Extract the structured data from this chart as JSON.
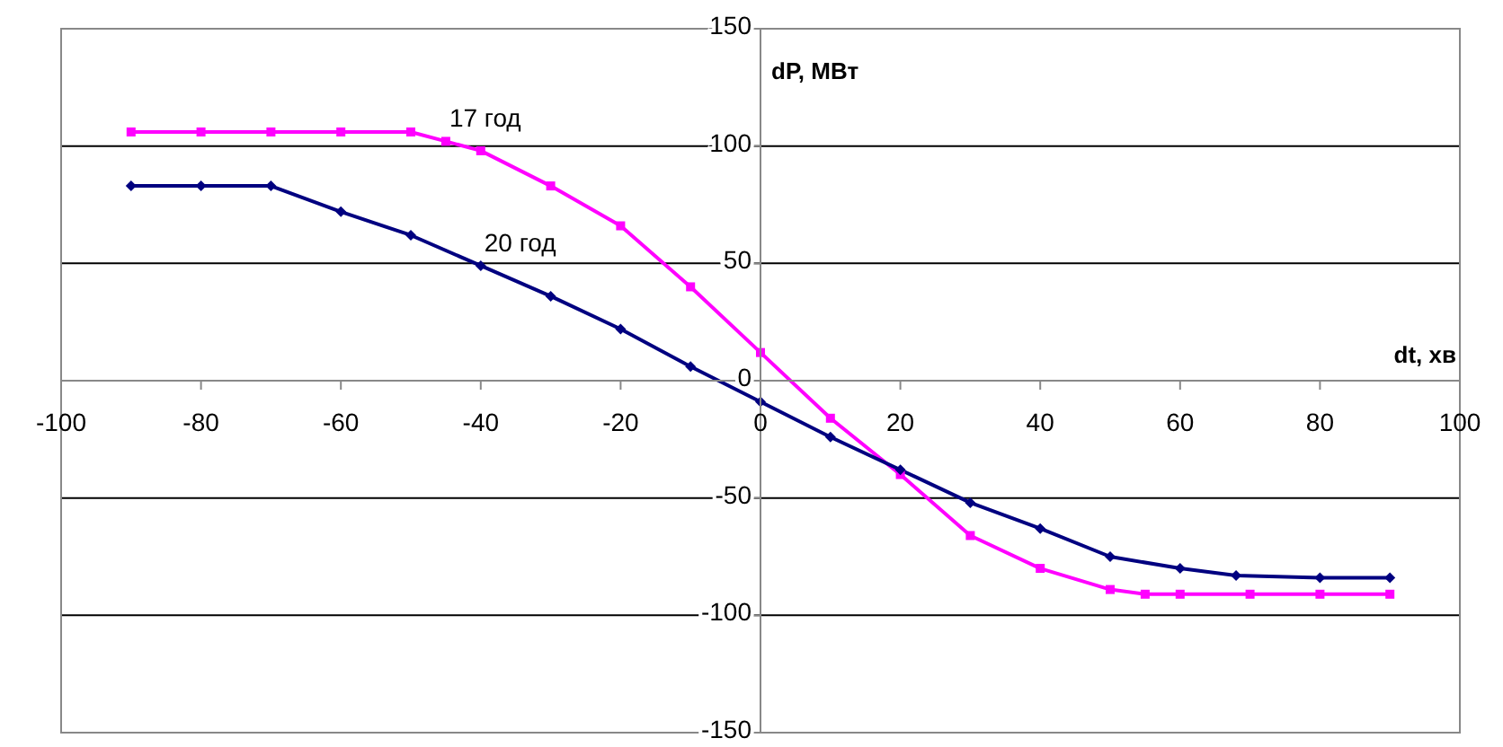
{
  "chart_data": {
    "type": "line",
    "xlabel": "dt, хв",
    "ylabel": "dP, МВт",
    "xlim": [
      -100,
      100
    ],
    "xticks": [
      -100,
      -80,
      -60,
      -40,
      -20,
      0,
      20,
      40,
      60,
      80,
      100
    ],
    "ylim": [
      -150,
      150
    ],
    "yticks": [
      -150,
      -100,
      -50,
      0,
      50,
      100,
      150
    ],
    "grid": "y",
    "line_style": "solid",
    "annotations": [
      {
        "text": "17 год",
        "x": -45,
        "y": 102
      },
      {
        "text": "20 год",
        "x": -40,
        "y": 49
      }
    ],
    "series": [
      {
        "color": "#ff00ff",
        "marker": "square",
        "x": [
          -90,
          -80,
          -70,
          -60,
          -50,
          -45,
          -40,
          -30,
          -20,
          -10,
          0,
          10,
          20,
          30,
          40,
          50,
          55,
          60,
          70,
          80,
          90
        ],
        "values": [
          106,
          106,
          106,
          106,
          106,
          102,
          98,
          83,
          66,
          40,
          12,
          -16,
          -40,
          -66,
          -80,
          -89,
          -91,
          -91,
          -91,
          -91,
          -91
        ]
      },
      {
        "color": "#000080",
        "marker": "diamond",
        "x": [
          -90,
          -80,
          -70,
          -60,
          -50,
          -40,
          -30,
          -20,
          -10,
          0,
          10,
          20,
          30,
          40,
          50,
          60,
          68,
          80,
          90
        ],
        "values": [
          83,
          83,
          83,
          72,
          62,
          49,
          36,
          22,
          6,
          -9,
          -24,
          -38,
          -52,
          -63,
          -75,
          -80,
          -83,
          -84,
          -84
        ]
      }
    ]
  }
}
